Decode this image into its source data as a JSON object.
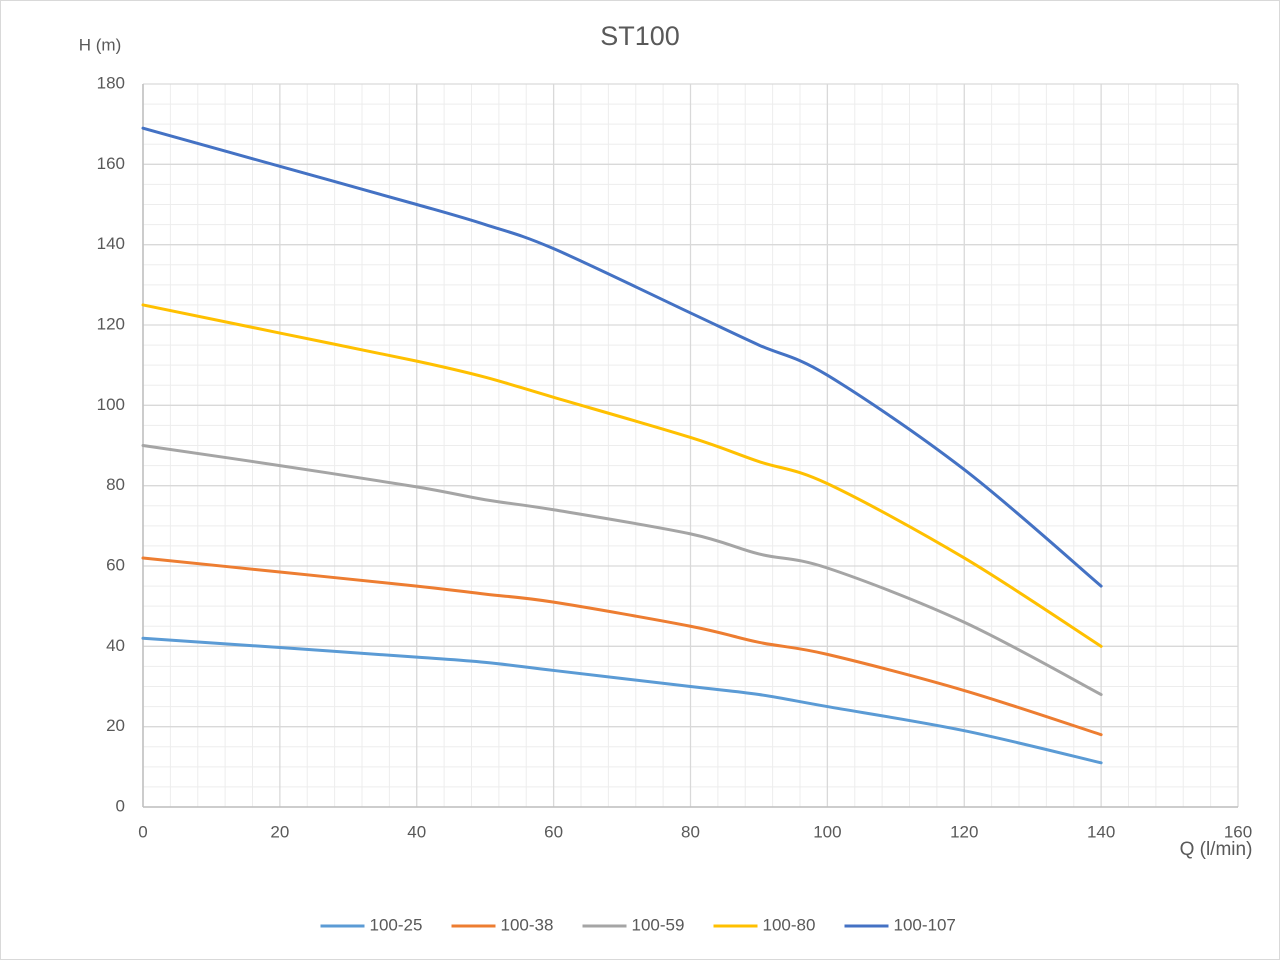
{
  "chart_data": {
    "type": "line",
    "title": "ST100",
    "ylabel": "H (m)",
    "xlabel": "Q (l/min)",
    "x": [
      0,
      20,
      40,
      50,
      60,
      80,
      90,
      100,
      120,
      140
    ],
    "series": [
      {
        "name": "100-25",
        "color": "#5b9bd5",
        "values": [
          42,
          39.7,
          37.3,
          36,
          34,
          30,
          28,
          25,
          19,
          11
        ]
      },
      {
        "name": "100-38",
        "color": "#ed7d31",
        "values": [
          62,
          58.5,
          55,
          53,
          51,
          45,
          41,
          38,
          29,
          18
        ]
      },
      {
        "name": "100-59",
        "color": "#a5a5a5",
        "values": [
          90,
          85,
          79.7,
          76.5,
          74,
          68,
          63,
          59.5,
          46,
          28
        ]
      },
      {
        "name": "100-80",
        "color": "#ffc000",
        "values": [
          125,
          118,
          111,
          107,
          102,
          92,
          86,
          80.5,
          62,
          40
        ]
      },
      {
        "name": "100-107",
        "color": "#4472c4",
        "values": [
          169,
          159.5,
          150,
          145,
          139,
          123,
          115,
          107.5,
          84,
          55
        ]
      }
    ],
    "xlim": [
      0,
      160
    ],
    "xticks": [
      0,
      20,
      40,
      60,
      80,
      100,
      120,
      140,
      160
    ],
    "ylim": [
      0,
      180
    ],
    "yticks": [
      0,
      20,
      40,
      60,
      80,
      100,
      120,
      140,
      160,
      180
    ],
    "grid": true,
    "legend": "bottom"
  }
}
